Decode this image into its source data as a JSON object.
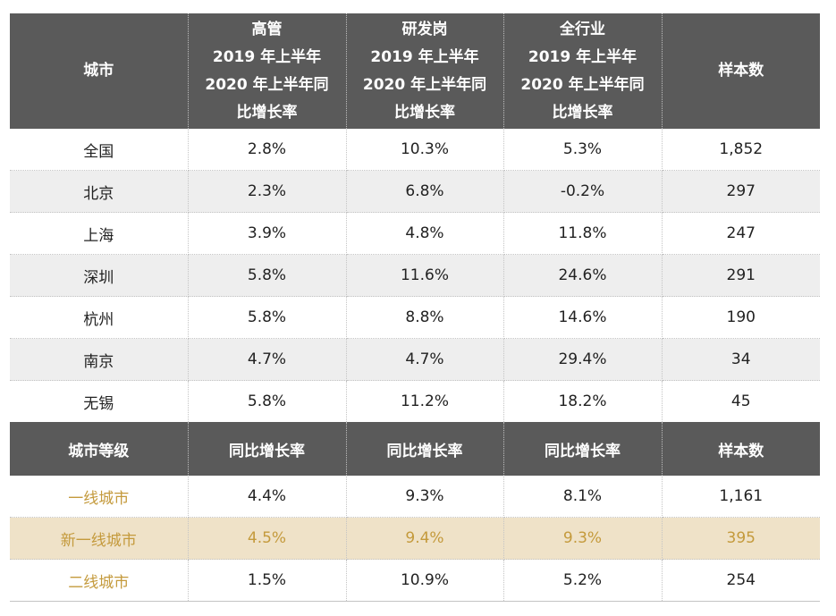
{
  "header": {
    "city": "城市",
    "exec": [
      "高管",
      "2019 年上半年",
      "2020 年上半年同",
      "比增长率"
    ],
    "rd": [
      "研发岗",
      "2019 年上半年",
      "2020 年上半年同",
      "比增长率"
    ],
    "all": [
      "全行业",
      "2019 年上半年",
      "2020 年上半年同",
      "比增长率"
    ],
    "sample": "样本数"
  },
  "cities": [
    {
      "name": "全国",
      "exec": "2.8%",
      "rd": "10.3%",
      "all": "5.3%",
      "sample": "1,852"
    },
    {
      "name": "北京",
      "exec": "2.3%",
      "rd": "6.8%",
      "all": "-0.2%",
      "sample": "297"
    },
    {
      "name": "上海",
      "exec": "3.9%",
      "rd": "4.8%",
      "all": "11.8%",
      "sample": "247"
    },
    {
      "name": "深圳",
      "exec": "5.8%",
      "rd": "11.6%",
      "all": "24.6%",
      "sample": "291"
    },
    {
      "name": "杭州",
      "exec": "5.8%",
      "rd": "8.8%",
      "all": "14.6%",
      "sample": "190"
    },
    {
      "name": "南京",
      "exec": "4.7%",
      "rd": "4.7%",
      "all": "29.4%",
      "sample": "34"
    },
    {
      "name": "无锡",
      "exec": "5.8%",
      "rd": "11.2%",
      "all": "18.2%",
      "sample": "45"
    }
  ],
  "tier_header": {
    "tier": "城市等级",
    "exec": "同比增长率",
    "rd": "同比增长率",
    "all": "同比增长率",
    "sample": "样本数"
  },
  "tiers": [
    {
      "name": "一线城市",
      "exec": "4.4%",
      "rd": "9.3%",
      "all": "8.1%",
      "sample": "1,161"
    },
    {
      "name": "新一线城市",
      "exec": "4.5%",
      "rd": "9.4%",
      "all": "9.3%",
      "sample": "395"
    },
    {
      "name": "二线城市",
      "exec": "1.5%",
      "rd": "10.9%",
      "all": "5.2%",
      "sample": "254"
    }
  ],
  "colors": {
    "header_bg": "#5a5a5a",
    "alt_row_bg": "#eeeeee",
    "gold_text": "#c49a3c",
    "highlight_bg": "#efe2c8"
  }
}
